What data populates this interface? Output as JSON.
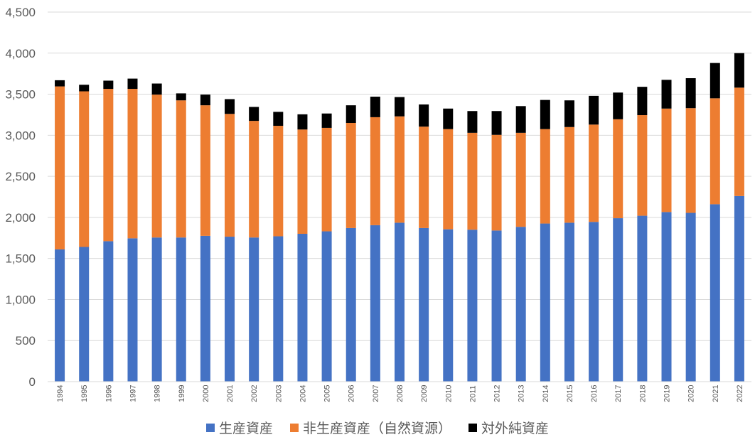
{
  "chart_data": {
    "type": "bar",
    "stacked": true,
    "categories": [
      "1994",
      "1995",
      "1996",
      "1997",
      "1998",
      "1999",
      "2000",
      "2001",
      "2002",
      "2003",
      "2004",
      "2005",
      "2006",
      "2007",
      "2008",
      "2009",
      "2010",
      "2011",
      "2012",
      "2013",
      "2014",
      "2015",
      "2016",
      "2017",
      "2018",
      "2019",
      "2020",
      "2021",
      "2022"
    ],
    "series": [
      {
        "name": "生産資産",
        "color": "#4472c4",
        "values": [
          1610,
          1640,
          1710,
          1745,
          1755,
          1755,
          1775,
          1765,
          1755,
          1770,
          1800,
          1830,
          1870,
          1905,
          1935,
          1870,
          1855,
          1850,
          1840,
          1885,
          1925,
          1935,
          1945,
          1990,
          2020,
          2065,
          2055,
          2160,
          2260
        ]
      },
      {
        "name": "非生産資産（自然資源）",
        "color": "#ed7d31",
        "values": [
          1985,
          1895,
          1855,
          1820,
          1740,
          1670,
          1590,
          1495,
          1420,
          1345,
          1270,
          1260,
          1280,
          1315,
          1295,
          1235,
          1220,
          1180,
          1165,
          1145,
          1150,
          1165,
          1185,
          1205,
          1225,
          1260,
          1275,
          1290,
          1320
        ]
      },
      {
        "name": "対外純資産",
        "color": "#000000",
        "values": [
          75,
          80,
          100,
          125,
          135,
          85,
          130,
          180,
          170,
          170,
          185,
          175,
          215,
          250,
          235,
          270,
          250,
          265,
          290,
          325,
          355,
          325,
          350,
          325,
          345,
          350,
          365,
          430,
          420
        ]
      }
    ],
    "yticks": [
      "0",
      "500",
      "1,000",
      "1,500",
      "2,000",
      "2,500",
      "3,000",
      "3,500",
      "4,000",
      "4,500"
    ],
    "ylim": [
      0,
      4500
    ],
    "grid": true,
    "legend_position": "bottom"
  }
}
